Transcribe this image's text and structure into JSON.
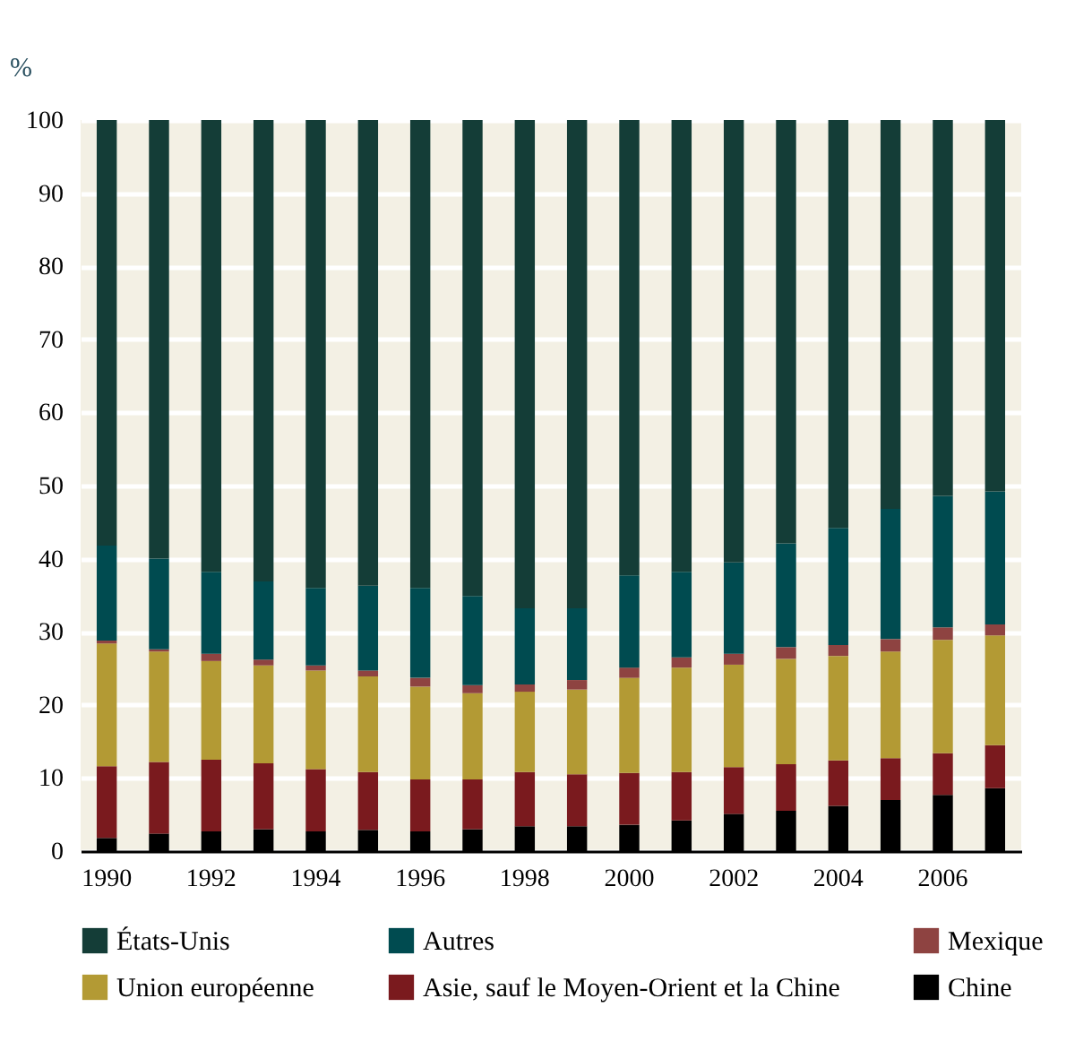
{
  "chart_data": {
    "type": "bar",
    "stacked": true,
    "ylabel": "%",
    "categories": [
      "1990",
      null,
      "1992",
      null,
      "1994",
      null,
      "1996",
      null,
      "1998",
      null,
      "2000",
      null,
      "2002",
      null,
      "2004",
      null,
      "2006",
      null
    ],
    "series": [
      {
        "name": "Chine",
        "color": "#000000",
        "values": [
          1.8,
          2.4,
          2.7,
          3.0,
          2.7,
          2.9,
          2.7,
          3.0,
          3.4,
          3.4,
          3.6,
          4.2,
          5.1,
          5.5,
          6.2,
          7.0,
          7.7,
          8.6
        ]
      },
      {
        "name": "Asie, sauf le Moyen-Orient et la Chine",
        "color": "#7a1a1e",
        "values": [
          9.8,
          9.8,
          9.8,
          9.0,
          8.5,
          7.9,
          7.1,
          6.8,
          7.4,
          7.1,
          7.1,
          6.6,
          6.4,
          6.4,
          6.2,
          5.7,
          5.7,
          5.9
        ]
      },
      {
        "name": "Union européenne",
        "color": "#b39a34",
        "values": [
          16.8,
          15.1,
          13.5,
          13.4,
          13.5,
          13.1,
          12.7,
          11.8,
          11.0,
          11.6,
          13.0,
          14.3,
          14.0,
          14.4,
          14.3,
          14.6,
          15.5,
          15.0
        ]
      },
      {
        "name": "Mexique",
        "color": "#8e4341",
        "values": [
          0.4,
          0.3,
          1.0,
          0.8,
          0.7,
          0.8,
          1.2,
          1.1,
          1.0,
          1.3,
          1.4,
          1.4,
          1.5,
          1.6,
          1.5,
          1.7,
          1.7,
          1.5
        ]
      },
      {
        "name": "Autres",
        "color": "#004b50",
        "values": [
          13.0,
          12.4,
          11.2,
          10.7,
          10.6,
          11.6,
          12.3,
          12.2,
          10.4,
          9.8,
          12.6,
          11.7,
          12.5,
          14.2,
          16.0,
          17.8,
          18.0,
          18.2
        ]
      },
      {
        "name": "États-Unis",
        "color": "#143d37",
        "values": [
          58.2,
          60.0,
          61.8,
          63.1,
          64.0,
          63.7,
          64.0,
          65.1,
          66.8,
          66.8,
          62.3,
          61.8,
          60.5,
          57.9,
          55.8,
          53.2,
          51.4,
          50.8
        ]
      }
    ],
    "ylim": [
      0,
      100
    ],
    "yticks": [
      0,
      10,
      20,
      30,
      40,
      50,
      60,
      70,
      80,
      90,
      100
    ],
    "grid": "y",
    "legend": "bottom"
  }
}
